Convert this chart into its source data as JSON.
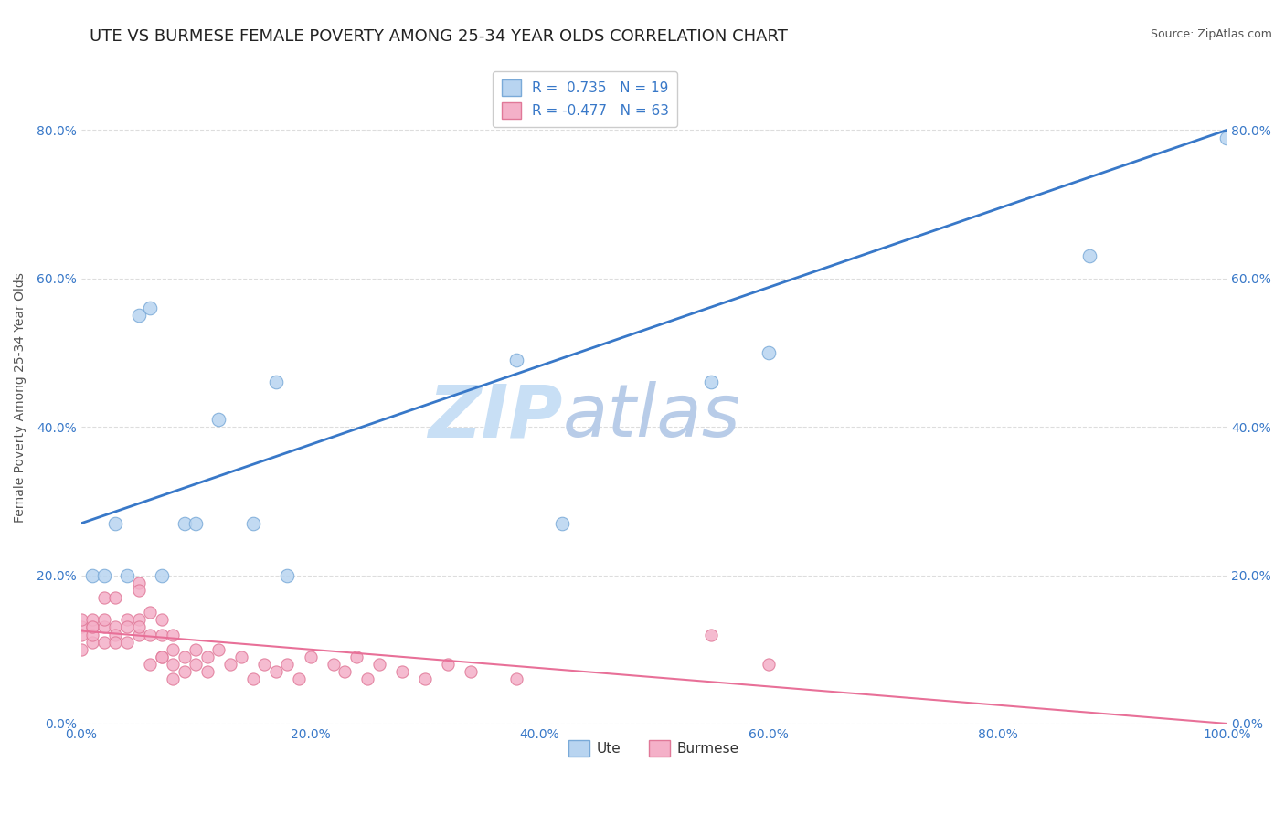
{
  "title": "UTE VS BURMESE FEMALE POVERTY AMONG 25-34 YEAR OLDS CORRELATION CHART",
  "source": "Source: ZipAtlas.com",
  "ylabel": "Female Poverty Among 25-34 Year Olds",
  "ute_color": "#b8d4f0",
  "ute_edge_color": "#7aaad8",
  "burmese_color": "#f4b0c8",
  "burmese_edge_color": "#e07898",
  "ute_line_color": "#3878c8",
  "burmese_line_color": "#e87098",
  "ute_R": 0.735,
  "ute_N": 19,
  "burmese_R": -0.477,
  "burmese_N": 63,
  "ute_x": [
    0.01,
    0.02,
    0.03,
    0.04,
    0.05,
    0.06,
    0.07,
    0.09,
    0.1,
    0.12,
    0.15,
    0.17,
    0.18,
    0.38,
    0.42,
    0.55,
    0.6,
    0.88,
    1.0
  ],
  "ute_y": [
    0.2,
    0.2,
    0.27,
    0.2,
    0.55,
    0.56,
    0.2,
    0.27,
    0.27,
    0.41,
    0.27,
    0.46,
    0.2,
    0.49,
    0.27,
    0.46,
    0.5,
    0.63,
    0.79
  ],
  "burmese_x": [
    0.0,
    0.0,
    0.0,
    0.0,
    0.01,
    0.01,
    0.01,
    0.01,
    0.01,
    0.02,
    0.02,
    0.02,
    0.02,
    0.03,
    0.03,
    0.03,
    0.03,
    0.04,
    0.04,
    0.04,
    0.05,
    0.05,
    0.05,
    0.05,
    0.05,
    0.06,
    0.06,
    0.06,
    0.07,
    0.07,
    0.07,
    0.07,
    0.08,
    0.08,
    0.08,
    0.08,
    0.09,
    0.09,
    0.1,
    0.1,
    0.11,
    0.11,
    0.12,
    0.13,
    0.14,
    0.15,
    0.16,
    0.17,
    0.18,
    0.19,
    0.2,
    0.22,
    0.23,
    0.24,
    0.25,
    0.26,
    0.28,
    0.3,
    0.32,
    0.34,
    0.38,
    0.55,
    0.6
  ],
  "burmese_y": [
    0.13,
    0.14,
    0.12,
    0.1,
    0.13,
    0.14,
    0.11,
    0.12,
    0.13,
    0.17,
    0.13,
    0.14,
    0.11,
    0.17,
    0.13,
    0.12,
    0.11,
    0.14,
    0.11,
    0.13,
    0.19,
    0.14,
    0.18,
    0.12,
    0.13,
    0.12,
    0.15,
    0.08,
    0.09,
    0.12,
    0.09,
    0.14,
    0.1,
    0.12,
    0.08,
    0.06,
    0.09,
    0.07,
    0.1,
    0.08,
    0.09,
    0.07,
    0.1,
    0.08,
    0.09,
    0.06,
    0.08,
    0.07,
    0.08,
    0.06,
    0.09,
    0.08,
    0.07,
    0.09,
    0.06,
    0.08,
    0.07,
    0.06,
    0.08,
    0.07,
    0.06,
    0.12,
    0.08
  ],
  "xlim": [
    0.0,
    1.0
  ],
  "ylim": [
    0.0,
    0.88
  ],
  "xticks": [
    0.0,
    0.2,
    0.4,
    0.6,
    0.8,
    1.0
  ],
  "xtick_labels": [
    "0.0%",
    "20.0%",
    "40.0%",
    "60.0%",
    "80.0%",
    "100.0%"
  ],
  "yticks": [
    0.0,
    0.2,
    0.4,
    0.6,
    0.8
  ],
  "ytick_labels": [
    "0.0%",
    "20.0%",
    "40.0%",
    "60.0%",
    "80.0%"
  ],
  "grid_color": "#dddddd",
  "background_color": "#ffffff",
  "watermark_color": "#dce8f5",
  "legend_color": "#3878c8",
  "title_fontsize": 13,
  "axis_label_fontsize": 10,
  "tick_fontsize": 10,
  "tick_color": "#3878c8",
  "ute_line_x0": 0.0,
  "ute_line_y0": 0.27,
  "ute_line_x1": 1.0,
  "ute_line_y1": 0.8,
  "burmese_line_x0": 0.0,
  "burmese_line_y0": 0.125,
  "burmese_line_x1": 1.0,
  "burmese_line_y1": 0.0
}
